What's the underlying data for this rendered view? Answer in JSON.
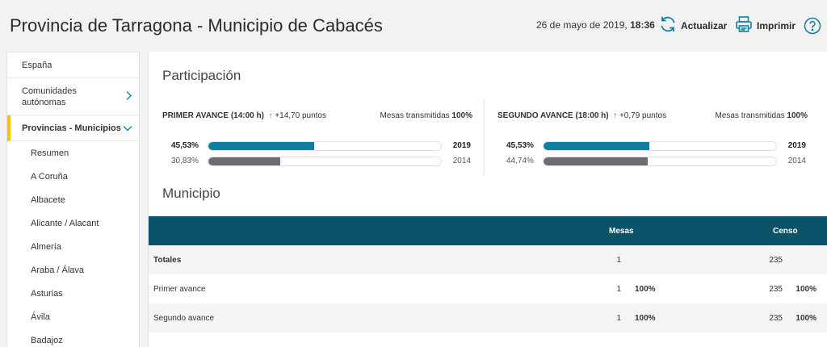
{
  "header": {
    "title": "Provincia de Tarragona - Municipio de Cabacés",
    "date": "26 de mayo de 2019,",
    "time": "18:36",
    "refresh_label": "Actualizar",
    "print_label": "Imprimir"
  },
  "sidebar": {
    "items": [
      {
        "label": "España"
      },
      {
        "label": "Comunidades autónomas"
      },
      {
        "label": "Provincias - Municipios"
      }
    ],
    "subitems": [
      "Resumen",
      "A Coruña",
      "Albacete",
      "Alicante / Alacant",
      "Almería",
      "Araba / Álava",
      "Asturias",
      "Ávila",
      "Badajoz"
    ]
  },
  "participation": {
    "title": "Participación",
    "columns": [
      {
        "title": "PRIMER AVANCE",
        "time": "(14:00 h)",
        "arrow": "↑",
        "delta": "+14,70 puntos",
        "mesas_label": "Mesas transmitidas",
        "mesas_value": "100%",
        "rows": [
          {
            "pct": "45,53%",
            "fraction": 0.4553,
            "year": "2019"
          },
          {
            "pct": "30,83%",
            "fraction": 0.3083,
            "year": "2014"
          }
        ]
      },
      {
        "title": "SEGUNDO AVANCE",
        "time": "(18:00 h)",
        "arrow": "↑",
        "delta": "+0,79 puntos",
        "mesas_label": "Mesas transmitidas",
        "mesas_value": "100%",
        "rows": [
          {
            "pct": "45,53%",
            "fraction": 0.4553,
            "year": "2019"
          },
          {
            "pct": "44,74%",
            "fraction": 0.4474,
            "year": "2014"
          }
        ]
      }
    ],
    "colors": {
      "y2019": "#0f7ea1",
      "y2014": "#6b6f73"
    }
  },
  "municipio": {
    "title": "Municipio",
    "headers": {
      "mesas": "Mesas",
      "censo": "Censo"
    },
    "rows": [
      {
        "name": "Totales",
        "mesas": "1",
        "mesas_pct": "",
        "censo": "235",
        "censo_pct": ""
      },
      {
        "name": "Primer avance",
        "mesas": "1",
        "mesas_pct": "100%",
        "censo": "235",
        "censo_pct": "100%"
      },
      {
        "name": "Segundo avance",
        "mesas": "1",
        "mesas_pct": "100%",
        "censo": "235",
        "censo_pct": "100%"
      }
    ]
  }
}
